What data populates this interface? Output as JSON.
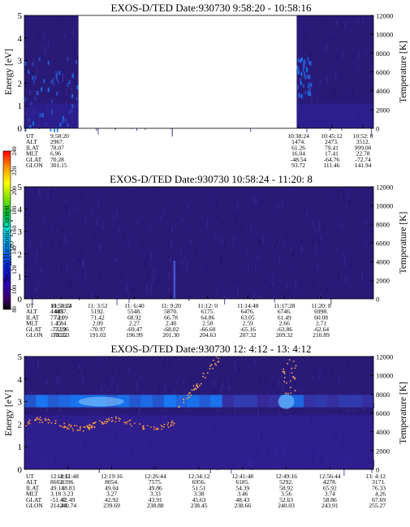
{
  "chart_data": [
    {
      "type": "heatmap",
      "title": "EXOS-D/TED   Date:930730  9:58:20 - 10:58:16",
      "ylabel": "Energy [eV]",
      "ylabel_right": "Temperature [K]",
      "ylim": [
        0,
        5
      ],
      "ylim_right": [
        0,
        12000
      ],
      "yticks": [
        "0",
        "1",
        "2",
        "3",
        "4",
        "5"
      ],
      "yticks_right": [
        "0",
        "2000",
        "4000",
        "6000",
        "8000",
        "10000",
        "12000"
      ],
      "data_gaps": [
        [
          0.155,
          0.78
        ]
      ],
      "ephemeris_rows": [
        "UT",
        "ALT",
        "ILAT",
        "MLT",
        "GLAT",
        "GLON"
      ],
      "ephemeris": [
        {
          "frac": 0.0,
          "values": [
            "9:58:20",
            "2967.",
            "78.07",
            "6.96",
            "70.28",
            "301.15"
          ]
        },
        {
          "frac": 0.785,
          "values": [
            "10:38:24",
            "1474.",
            "61.26",
            "16.04",
            "-48.54",
            "93.72"
          ]
        },
        {
          "frac": 0.88,
          "values": [
            "10:45:12",
            "2473.",
            "79.41",
            "17.41",
            "-64.76",
            "111.46"
          ]
        },
        {
          "frac": 0.97,
          "values": [
            "10:52: 0",
            "3512.",
            "999.00",
            "22.78",
            "-72.74",
            "141.94"
          ]
        }
      ]
    },
    {
      "type": "heatmap",
      "title": "EXOS-D/TED   Date:930730  10:58:24 - 11:20: 8",
      "ylabel": "Energy [eV]",
      "ylabel_right": "Temperature [K]",
      "ylim": [
        0,
        5
      ],
      "ylim_right": [
        0,
        12000
      ],
      "yticks": [
        "0",
        "1",
        "2",
        "3",
        "4",
        "5"
      ],
      "yticks_right": [
        "0",
        "2000",
        "4000",
        "6000",
        "8000",
        "10000",
        "12000"
      ],
      "colorbar": {
        "label": "Second Harmonic Current",
        "range": [
          80,
          240
        ],
        "ticks": [
          "80",
          "100",
          "120",
          "140",
          "160",
          "180",
          "200",
          "220",
          "240"
        ]
      },
      "ephemeris_rows": [
        "UT",
        "ALT",
        "ILAT",
        "MLT",
        "GLAT",
        "GLON"
      ],
      "ephemeris": [
        {
          "frac": 0.0,
          "values": [
            "10:58:24",
            "4449.",
            "77.21",
            "1.45",
            "-73.29",
            "173.32"
          ]
        },
        {
          "frac": 0.105,
          "values": [
            "11: 1:12",
            "4837.",
            "74.09",
            "1.84",
            "-72.26",
            "183.53"
          ]
        },
        {
          "frac": 0.21,
          "values": [
            "11: 3:52",
            "5192.",
            "71.42",
            "2.09",
            "-70.97",
            "191.02"
          ]
        },
        {
          "frac": 0.315,
          "values": [
            "11: 6:40",
            "5548.",
            "68.92",
            "2.27",
            "-69.47",
            "196.99"
          ]
        },
        {
          "frac": 0.42,
          "values": [
            "11: 9:20",
            "5870.",
            "66.78",
            "2.40",
            "-68.02",
            "201.30"
          ]
        },
        {
          "frac": 0.525,
          "values": [
            "11:12: 0",
            "6175.",
            "64.86",
            "2.50",
            "-66.60",
            "204.63"
          ]
        },
        {
          "frac": 0.64,
          "values": [
            "11:14:48",
            "6476.",
            "63.05",
            "2.59",
            "-65.16",
            "207.32"
          ]
        },
        {
          "frac": 0.745,
          "values": [
            "11:17:28",
            "6746.",
            "61.49",
            "2.66",
            "-63.86",
            "209.32"
          ]
        },
        {
          "frac": 0.85,
          "values": [
            "11:20: 8",
            "6998.",
            "60.08",
            "2.71",
            "-62.64",
            "210.89"
          ]
        }
      ]
    },
    {
      "type": "heatmap",
      "title": "EXOS-D/TED   Date:930730  12: 4:12 - 13: 4:12",
      "ylabel": "Energy [eV]",
      "ylabel_right": "Temperature [K]",
      "ylim": [
        0,
        5
      ],
      "ylim_right": [
        0,
        12000
      ],
      "yticks": [
        "0",
        "1",
        "2",
        "3",
        "4",
        "5"
      ],
      "yticks_right": [
        "0",
        "2000",
        "4000",
        "6000",
        "8000",
        "10000",
        "12000"
      ],
      "ephemeris_rows": [
        "UT",
        "ALT",
        "ILAT",
        "MLT",
        "GLAT",
        "GLON"
      ],
      "ephemeris": [
        {
          "frac": 0.0,
          "values": [
            "12: 4:12",
            "8602.",
            "49.14",
            "3.18",
            "-51.47",
            "214.44"
          ]
        },
        {
          "frac": 0.125,
          "values": [
            "12:11:48",
            "8396.",
            "48.83",
            "3.23",
            "42.49",
            "240.74"
          ]
        },
        {
          "frac": 0.25,
          "values": [
            "12:19:16",
            "8054.",
            "49.04",
            "3.27",
            "42.92",
            "239.69"
          ]
        },
        {
          "frac": 0.375,
          "values": [
            "12:26:44",
            "7575.",
            "49.86",
            "3.33",
            "43.91",
            "238.88"
          ]
        },
        {
          "frac": 0.5,
          "values": [
            "12:34:12",
            "6956.",
            "51.51",
            "3.38",
            "45.63",
            "238.45"
          ]
        },
        {
          "frac": 0.625,
          "values": [
            "12:41:48",
            "6185.",
            "54.39",
            "3.46",
            "48.43",
            "238.66"
          ]
        },
        {
          "frac": 0.75,
          "values": [
            "12:49:16",
            "5292.",
            "58.92",
            "3.56",
            "52.63",
            "240.03"
          ]
        },
        {
          "frac": 0.875,
          "values": [
            "12:56:44",
            "4278.",
            "65.92",
            "3.74",
            "58.86",
            "243.91"
          ]
        },
        {
          "frac": 1.0,
          "values": [
            "13: 4:12",
            "3171.",
            "76.33",
            "4.26",
            "67.69",
            "255.27"
          ]
        }
      ]
    }
  ]
}
